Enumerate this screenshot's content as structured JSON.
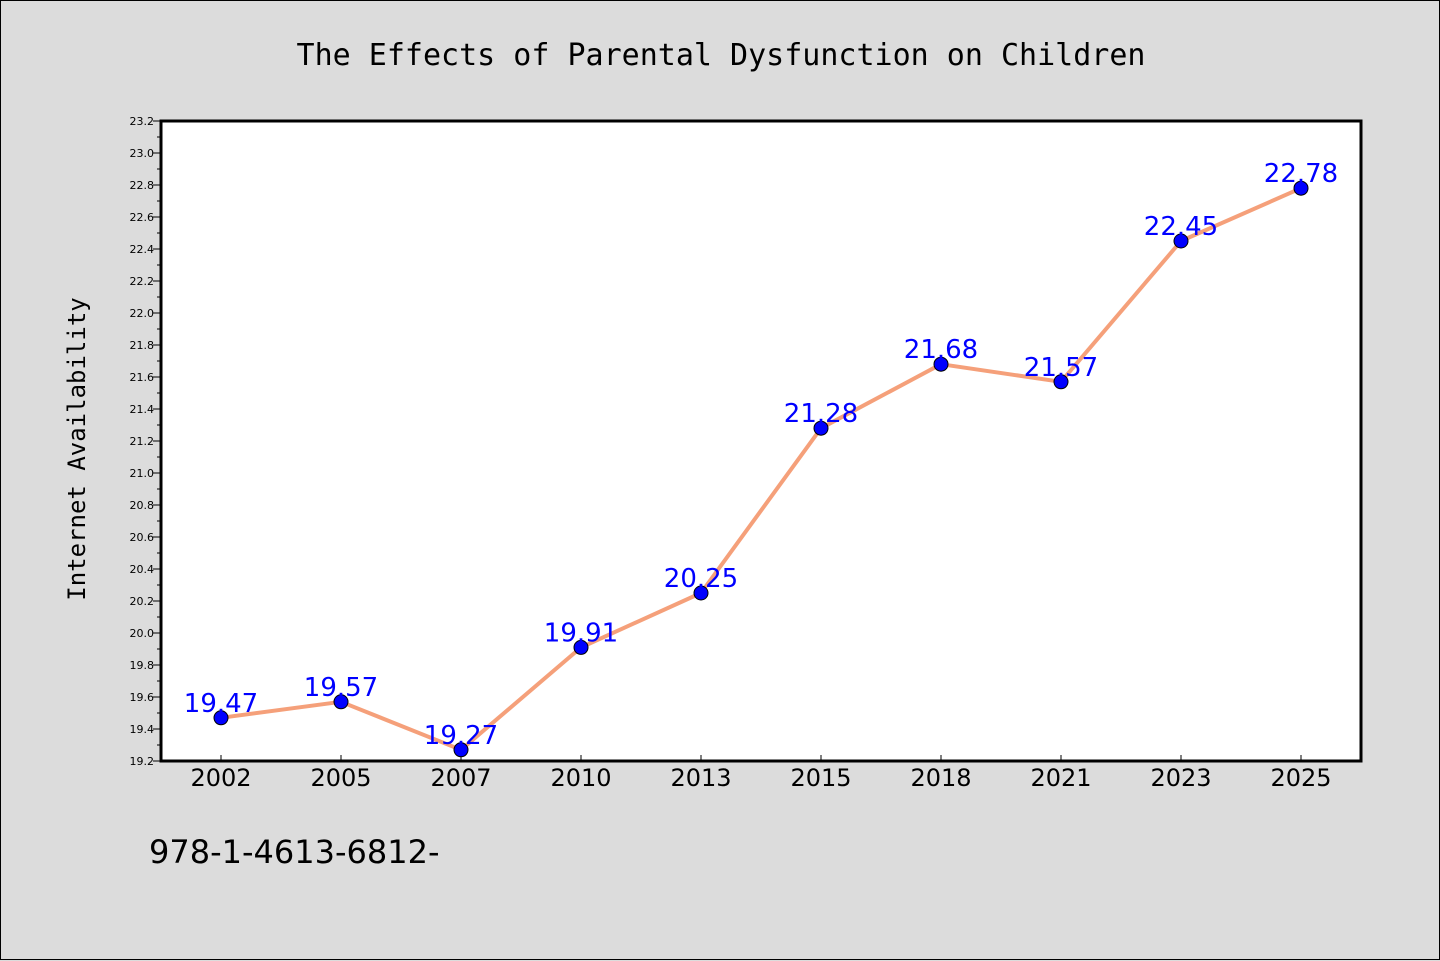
{
  "colors": {
    "background": "#dcdcdc",
    "plot_background": "#ffffff",
    "line": "#f5a07a",
    "marker": "#0000ff",
    "data_label": "#0000ff"
  },
  "footer": {
    "text": "978-1-4613-6812-"
  },
  "chart_data": {
    "type": "line",
    "title": "The Effects of Parental Dysfunction on Children",
    "xlabel": "",
    "ylabel": "Internet Availability",
    "categories": [
      "2002",
      "2005",
      "2007",
      "2010",
      "2013",
      "2015",
      "2018",
      "2021",
      "2023",
      "2025"
    ],
    "series": [
      {
        "values": [
          19.47,
          19.57,
          19.27,
          19.91,
          20.25,
          21.28,
          21.68,
          21.57,
          22.45,
          22.78
        ]
      }
    ],
    "data_labels": [
      "19.47",
      "19.57",
      "19.27",
      "19.91",
      "20.25",
      "21.28",
      "21.68",
      "21.57",
      "22.45",
      "22.78"
    ],
    "ylim": [
      19.2,
      23.2
    ],
    "yticks": [
      "19.2",
      "19.4",
      "19.6",
      "19.8",
      "20.0",
      "20.2",
      "20.4",
      "20.6",
      "20.8",
      "21.0",
      "21.2",
      "21.4",
      "21.6",
      "21.8",
      "22.0",
      "22.2",
      "22.4",
      "22.6",
      "22.8",
      "23.0",
      "23.2"
    ],
    "grid": false,
    "legend": "none"
  }
}
